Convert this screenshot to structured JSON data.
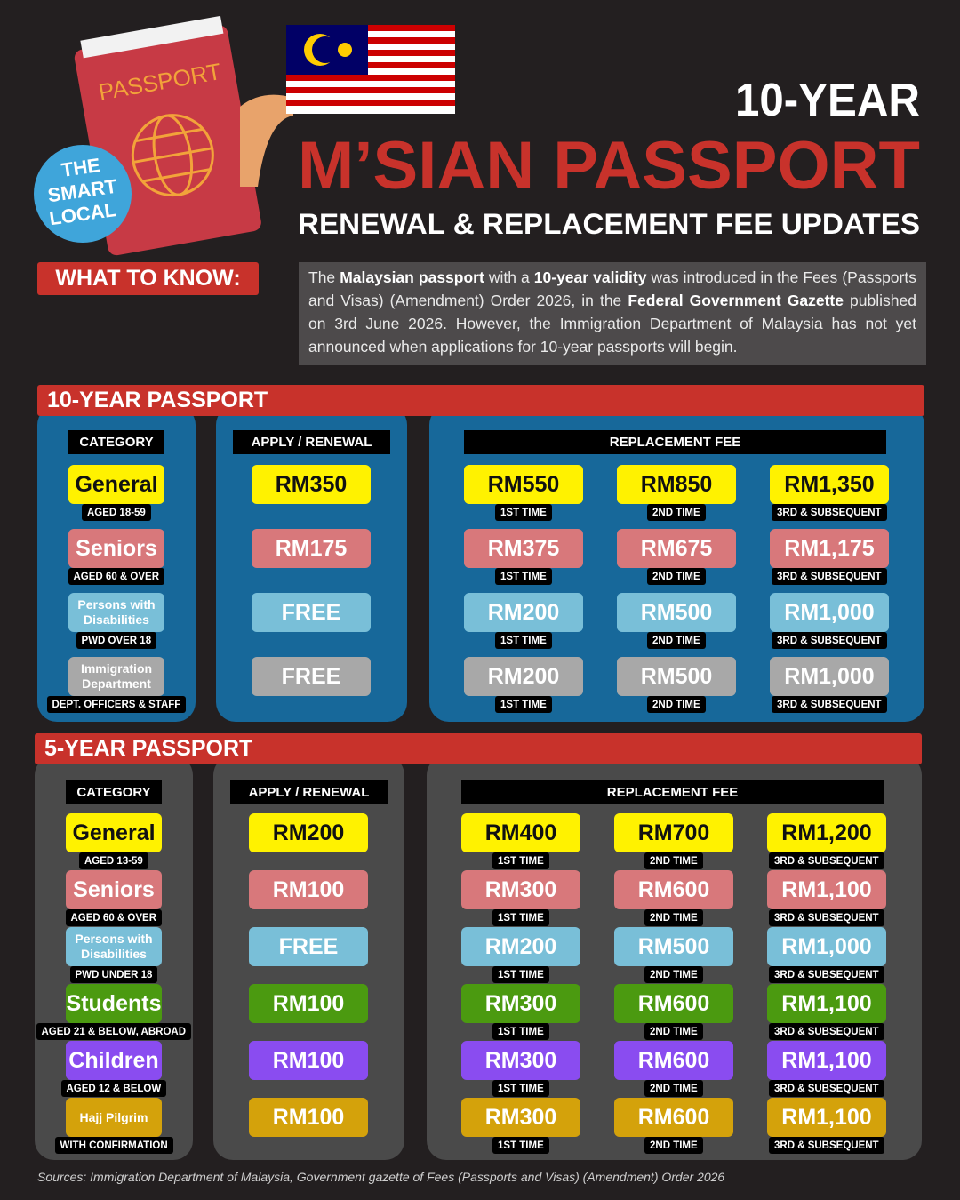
{
  "header": {
    "line1": "10-YEAR",
    "line2": "M’SIAN PASSPORT",
    "line3": "RENEWAL & REPLACEMENT FEE UPDATES"
  },
  "logo": [
    "THE",
    "SMART",
    "LOCAL"
  ],
  "illustration_text": "PASSPORT",
  "intro": {
    "label": "WHAT TO KNOW:",
    "text": [
      {
        "text": "The ",
        "bold": false
      },
      {
        "text": "Malaysian passport",
        "bold": true
      },
      {
        "text": " with a ",
        "bold": false
      },
      {
        "text": "10-year validity",
        "bold": true
      },
      {
        "text": " was introduced in the Fees (Passports and Visas) (Amendment) Order 2026, in the ",
        "bold": false
      },
      {
        "text": "Federal Government Gazette",
        "bold": true
      },
      {
        "text": " published on 3rd June 2026. However, the Immigration Department of Malaysia has not yet announced when applications for 10-year passports will begin.",
        "bold": false
      }
    ]
  },
  "sections": [
    {
      "title": "10-YEAR PASSPORT",
      "panel_color": "#17689a",
      "headers": {
        "category": "CATEGORY",
        "apply": "APPLY / RENEWAL",
        "replacement": "REPLACEMENT FEE"
      },
      "rows": [
        {
          "name": "General",
          "note": "AGED 18-59",
          "color": "#fff200",
          "text_color": "#111111",
          "apply": "RM350",
          "replacements": [
            {
              "fee": "RM550",
              "label": "1ST TIME"
            },
            {
              "fee": "RM850",
              "label": "2ND TIME"
            },
            {
              "fee": "RM1,350",
              "label": "3RD & SUBSEQUENT"
            }
          ]
        },
        {
          "name": "Seniors",
          "note": "AGED 60 & OVER",
          "color": "#d8787b",
          "text_color": "#ffffff",
          "apply": "RM175",
          "replacements": [
            {
              "fee": "RM375",
              "label": "1ST TIME"
            },
            {
              "fee": "RM675",
              "label": "2ND TIME"
            },
            {
              "fee": "RM1,175",
              "label": "3RD & SUBSEQUENT"
            }
          ]
        },
        {
          "name": "Persons with Disabilities",
          "note": "PWD OVER 18",
          "color": "#79bfd8",
          "text_color": "#ffffff",
          "apply": "FREE",
          "replacements": [
            {
              "fee": "RM200",
              "label": "1ST TIME"
            },
            {
              "fee": "RM500",
              "label": "2ND TIME"
            },
            {
              "fee": "RM1,000",
              "label": "3RD & SUBSEQUENT"
            }
          ]
        },
        {
          "name": "Immigration Department",
          "note": "DEPT. OFFICERS & STAFF",
          "color": "#a8a8a8",
          "text_color": "#ffffff",
          "apply": "FREE",
          "replacements": [
            {
              "fee": "RM200",
              "label": "1ST TIME"
            },
            {
              "fee": "RM500",
              "label": "2ND TIME"
            },
            {
              "fee": "RM1,000",
              "label": "3RD & SUBSEQUENT"
            }
          ]
        }
      ]
    },
    {
      "title": "5-YEAR PASSPORT",
      "panel_color": "#4a4a4a",
      "headers": {
        "category": "CATEGORY",
        "apply": "APPLY / RENEWAL",
        "replacement": "REPLACEMENT FEE"
      },
      "rows": [
        {
          "name": "General",
          "note": "AGED 13-59",
          "color": "#fff200",
          "text_color": "#111111",
          "apply": "RM200",
          "replacements": [
            {
              "fee": "RM400",
              "label": "1ST TIME"
            },
            {
              "fee": "RM700",
              "label": "2ND TIME"
            },
            {
              "fee": "RM1,200",
              "label": "3RD & SUBSEQUENT"
            }
          ]
        },
        {
          "name": "Seniors",
          "note": "AGED 60 & OVER",
          "color": "#d8787b",
          "text_color": "#ffffff",
          "apply": "RM100",
          "replacements": [
            {
              "fee": "RM300",
              "label": "1ST TIME"
            },
            {
              "fee": "RM600",
              "label": "2ND TIME"
            },
            {
              "fee": "RM1,100",
              "label": "3RD & SUBSEQUENT"
            }
          ]
        },
        {
          "name": "Persons with Disabilities",
          "note": "PWD UNDER 18",
          "color": "#79bfd8",
          "text_color": "#ffffff",
          "apply": "FREE",
          "replacements": [
            {
              "fee": "RM200",
              "label": "1ST TIME"
            },
            {
              "fee": "RM500",
              "label": "2ND TIME"
            },
            {
              "fee": "RM1,000",
              "label": "3RD & SUBSEQUENT"
            }
          ]
        },
        {
          "name": "Students",
          "note": "AGED 21 & BELOW, ABROAD",
          "color": "#4b9a10",
          "text_color": "#ffffff",
          "apply": "RM100",
          "replacements": [
            {
              "fee": "RM300",
              "label": "1ST TIME"
            },
            {
              "fee": "RM600",
              "label": "2ND TIME"
            },
            {
              "fee": "RM1,100",
              "label": "3RD & SUBSEQUENT"
            }
          ]
        },
        {
          "name": "Children",
          "note": "AGED 12 & BELOW",
          "color": "#8a4cf0",
          "text_color": "#ffffff",
          "apply": "RM100",
          "replacements": [
            {
              "fee": "RM300",
              "label": "1ST TIME"
            },
            {
              "fee": "RM600",
              "label": "2ND TIME"
            },
            {
              "fee": "RM1,100",
              "label": "3RD & SUBSEQUENT"
            }
          ]
        },
        {
          "name": "Hajj Pilgrim",
          "note": "WITH CONFIRMATION",
          "color": "#d4a20b",
          "text_color": "#ffffff",
          "apply": "RM100",
          "replacements": [
            {
              "fee": "RM300",
              "label": "1ST TIME"
            },
            {
              "fee": "RM600",
              "label": "2ND TIME"
            },
            {
              "fee": "RM1,100",
              "label": "3RD & SUBSEQUENT"
            }
          ]
        }
      ]
    }
  ],
  "footer": "Sources:  Immigration Department of Malaysia, Government gazette of Fees (Passports and Visas) (Amendment) Order 2026"
}
